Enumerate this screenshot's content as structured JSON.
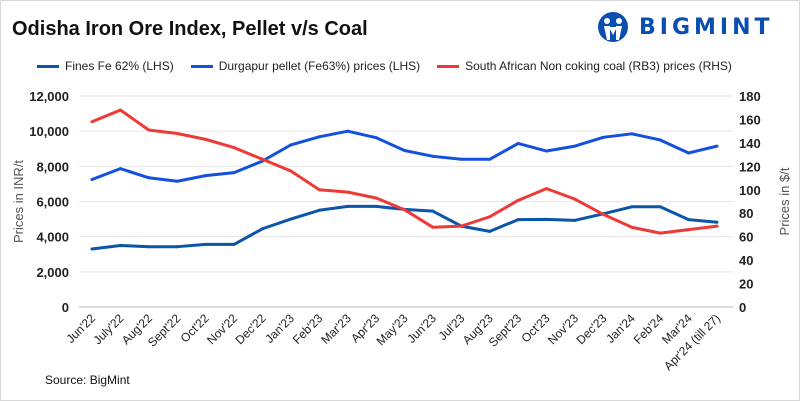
{
  "title": "Odisha Iron Ore Index, Pellet v/s Coal",
  "logo": {
    "text": "BIGMINT",
    "color": "#0a4fb0"
  },
  "source": "Source: BigMint",
  "chart_data": {
    "type": "line",
    "title": "Odisha Iron Ore Index, Pellet v/s Coal",
    "ylabel": "Prices in INR/t",
    "y2label": "Prices in $/t",
    "ylim": [
      0,
      12000
    ],
    "y2lim": [
      0,
      180
    ],
    "yticks": [
      "0",
      "2,000",
      "4,000",
      "6,000",
      "8,000",
      "10,000",
      "12,000"
    ],
    "y2ticks": [
      "0",
      "20",
      "40",
      "60",
      "80",
      "100",
      "120",
      "140",
      "160",
      "180"
    ],
    "grid": true,
    "legend": "top",
    "categories": [
      "Jun'22",
      "July'22",
      "Aug'22",
      "Sept'22",
      "Oct'22",
      "Nov'22",
      "Dec'22",
      "Jan'23",
      "Feb'23",
      "Mar'23",
      "Apr'23",
      "May'23",
      "Jun'23",
      "Jul'23",
      "Aug'23",
      "Sept'23",
      "Oct'23",
      "Nov'23",
      "Dec'23",
      "Jan'24",
      "Feb'24",
      "Mar'24",
      "Apr'24 (till 27)"
    ],
    "series": [
      {
        "name": "Fines Fe 62% (LHS)",
        "axis": "left",
        "color": "#0b56a8",
        "values": [
          3300,
          3500,
          3430,
          3430,
          3560,
          3560,
          4450,
          5000,
          5500,
          5720,
          5720,
          5550,
          5450,
          4600,
          4300,
          4970,
          4980,
          4930,
          5300,
          5700,
          5700,
          4970,
          4820
        ]
      },
      {
        "name": "Durgapur pellet (Fe63%) prices (LHS)",
        "axis": "left",
        "color": "#1450e0",
        "values": [
          7250,
          7870,
          7350,
          7150,
          7470,
          7640,
          8300,
          9220,
          9680,
          10000,
          9630,
          8900,
          8570,
          8400,
          8400,
          9300,
          8870,
          9150,
          9650,
          9850,
          9500,
          8760,
          9150
        ]
      },
      {
        "name": "South African Non coking coal (RB3) prices (RHS)",
        "axis": "right",
        "color": "#ee3a36",
        "values": [
          158,
          168,
          151,
          148,
          143,
          136,
          126,
          116,
          100,
          98,
          93,
          83,
          68,
          69,
          77,
          91,
          101,
          92,
          79,
          68,
          63,
          66,
          69
        ]
      }
    ]
  }
}
